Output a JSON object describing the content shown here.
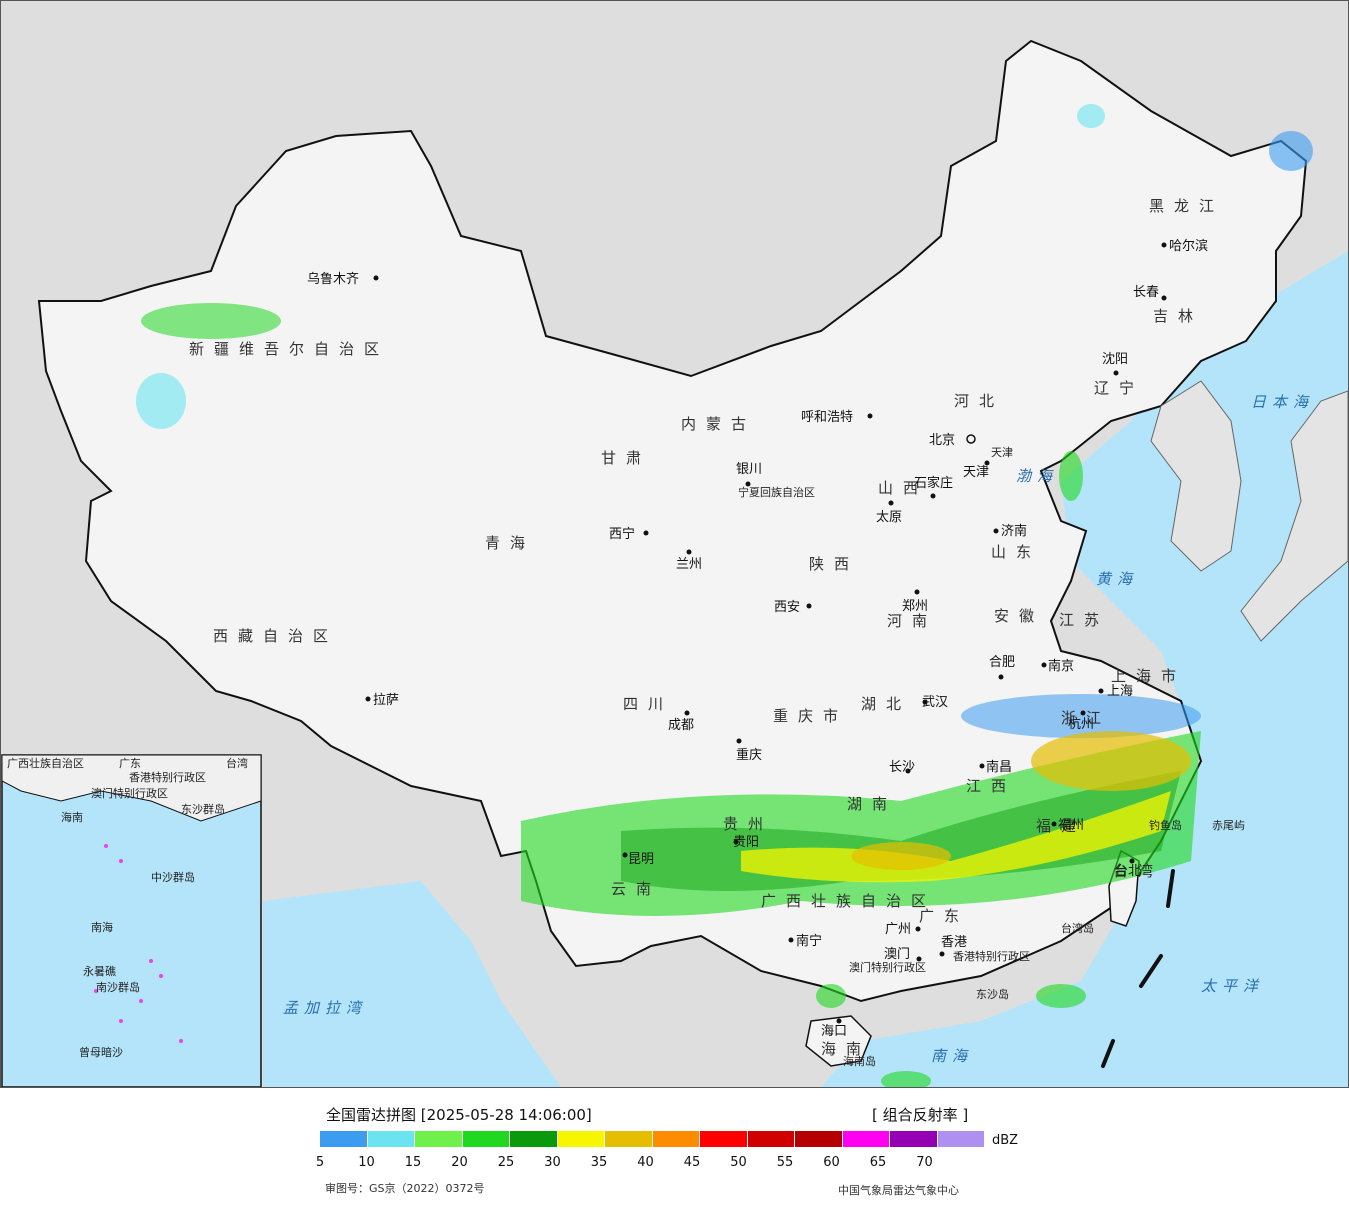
{
  "map": {
    "provinces": [
      "新疆维吾尔自治区",
      "西藏自治区",
      "青海",
      "甘肃",
      "内蒙古",
      "黑龙江",
      "吉林",
      "辽宁",
      "河北",
      "山西",
      "陕西",
      "河南",
      "山东",
      "江苏",
      "安徽",
      "湖北",
      "四川",
      "重庆市",
      "湖南",
      "江西",
      "浙江",
      "福建",
      "贵州",
      "云南",
      "广西壮族自治区",
      "广东",
      "海南",
      "台湾",
      "宁夏回族自治区",
      "上海市",
      "天津"
    ],
    "cities": [
      "乌鲁木齐",
      "拉萨",
      "西宁",
      "兰州",
      "银川",
      "呼和浩特",
      "北京",
      "天津",
      "石家庄",
      "太原",
      "济南",
      "郑州",
      "西安",
      "成都",
      "重庆",
      "武汉",
      "合肥",
      "南京",
      "上海",
      "杭州",
      "长沙",
      "南昌",
      "福州",
      "贵阳",
      "昆明",
      "南宁",
      "广州",
      "香港",
      "澳门",
      "海口",
      "台北",
      "沈阳",
      "长春",
      "哈尔滨"
    ],
    "seas": [
      "日本海",
      "渤海",
      "黄海",
      "太平洋",
      "南海",
      "孟加拉湾"
    ],
    "islands": [
      "钓鱼岛",
      "赤尾屿",
      "台湾岛",
      "海南岛",
      "东沙岛"
    ],
    "special_regions": [
      "香港特别行政区",
      "澳门特别行政区"
    ],
    "inset": [
      "广西壮族自治区",
      "广东",
      "台湾",
      "香港特别行政区",
      "澳门特别行政区",
      "东沙群岛",
      "海南",
      "中沙群岛",
      "南海",
      "南沙群岛",
      "永暑礁",
      "曾母暗沙"
    ]
  },
  "legend": {
    "title": "全国雷达拼图 [2025-05-28 14:06:00]",
    "product": "[ 组合反射率 ]",
    "unit": "dBZ",
    "ticks": [
      "5",
      "10",
      "15",
      "20",
      "25",
      "30",
      "35",
      "40",
      "45",
      "50",
      "55",
      "60",
      "65",
      "70"
    ],
    "colors": [
      "#3c9cf0",
      "#6ce4f0",
      "#70f04a",
      "#20d820",
      "#0b9a0b",
      "#f6f600",
      "#e6be00",
      "#fe8c00",
      "#ff0000",
      "#d00000",
      "#b40000",
      "#ff00f0",
      "#9600b4",
      "#ad90f0"
    ],
    "approval": "审图号：GS京（2022）0372号",
    "source": "中国气象局雷达气象中心"
  }
}
